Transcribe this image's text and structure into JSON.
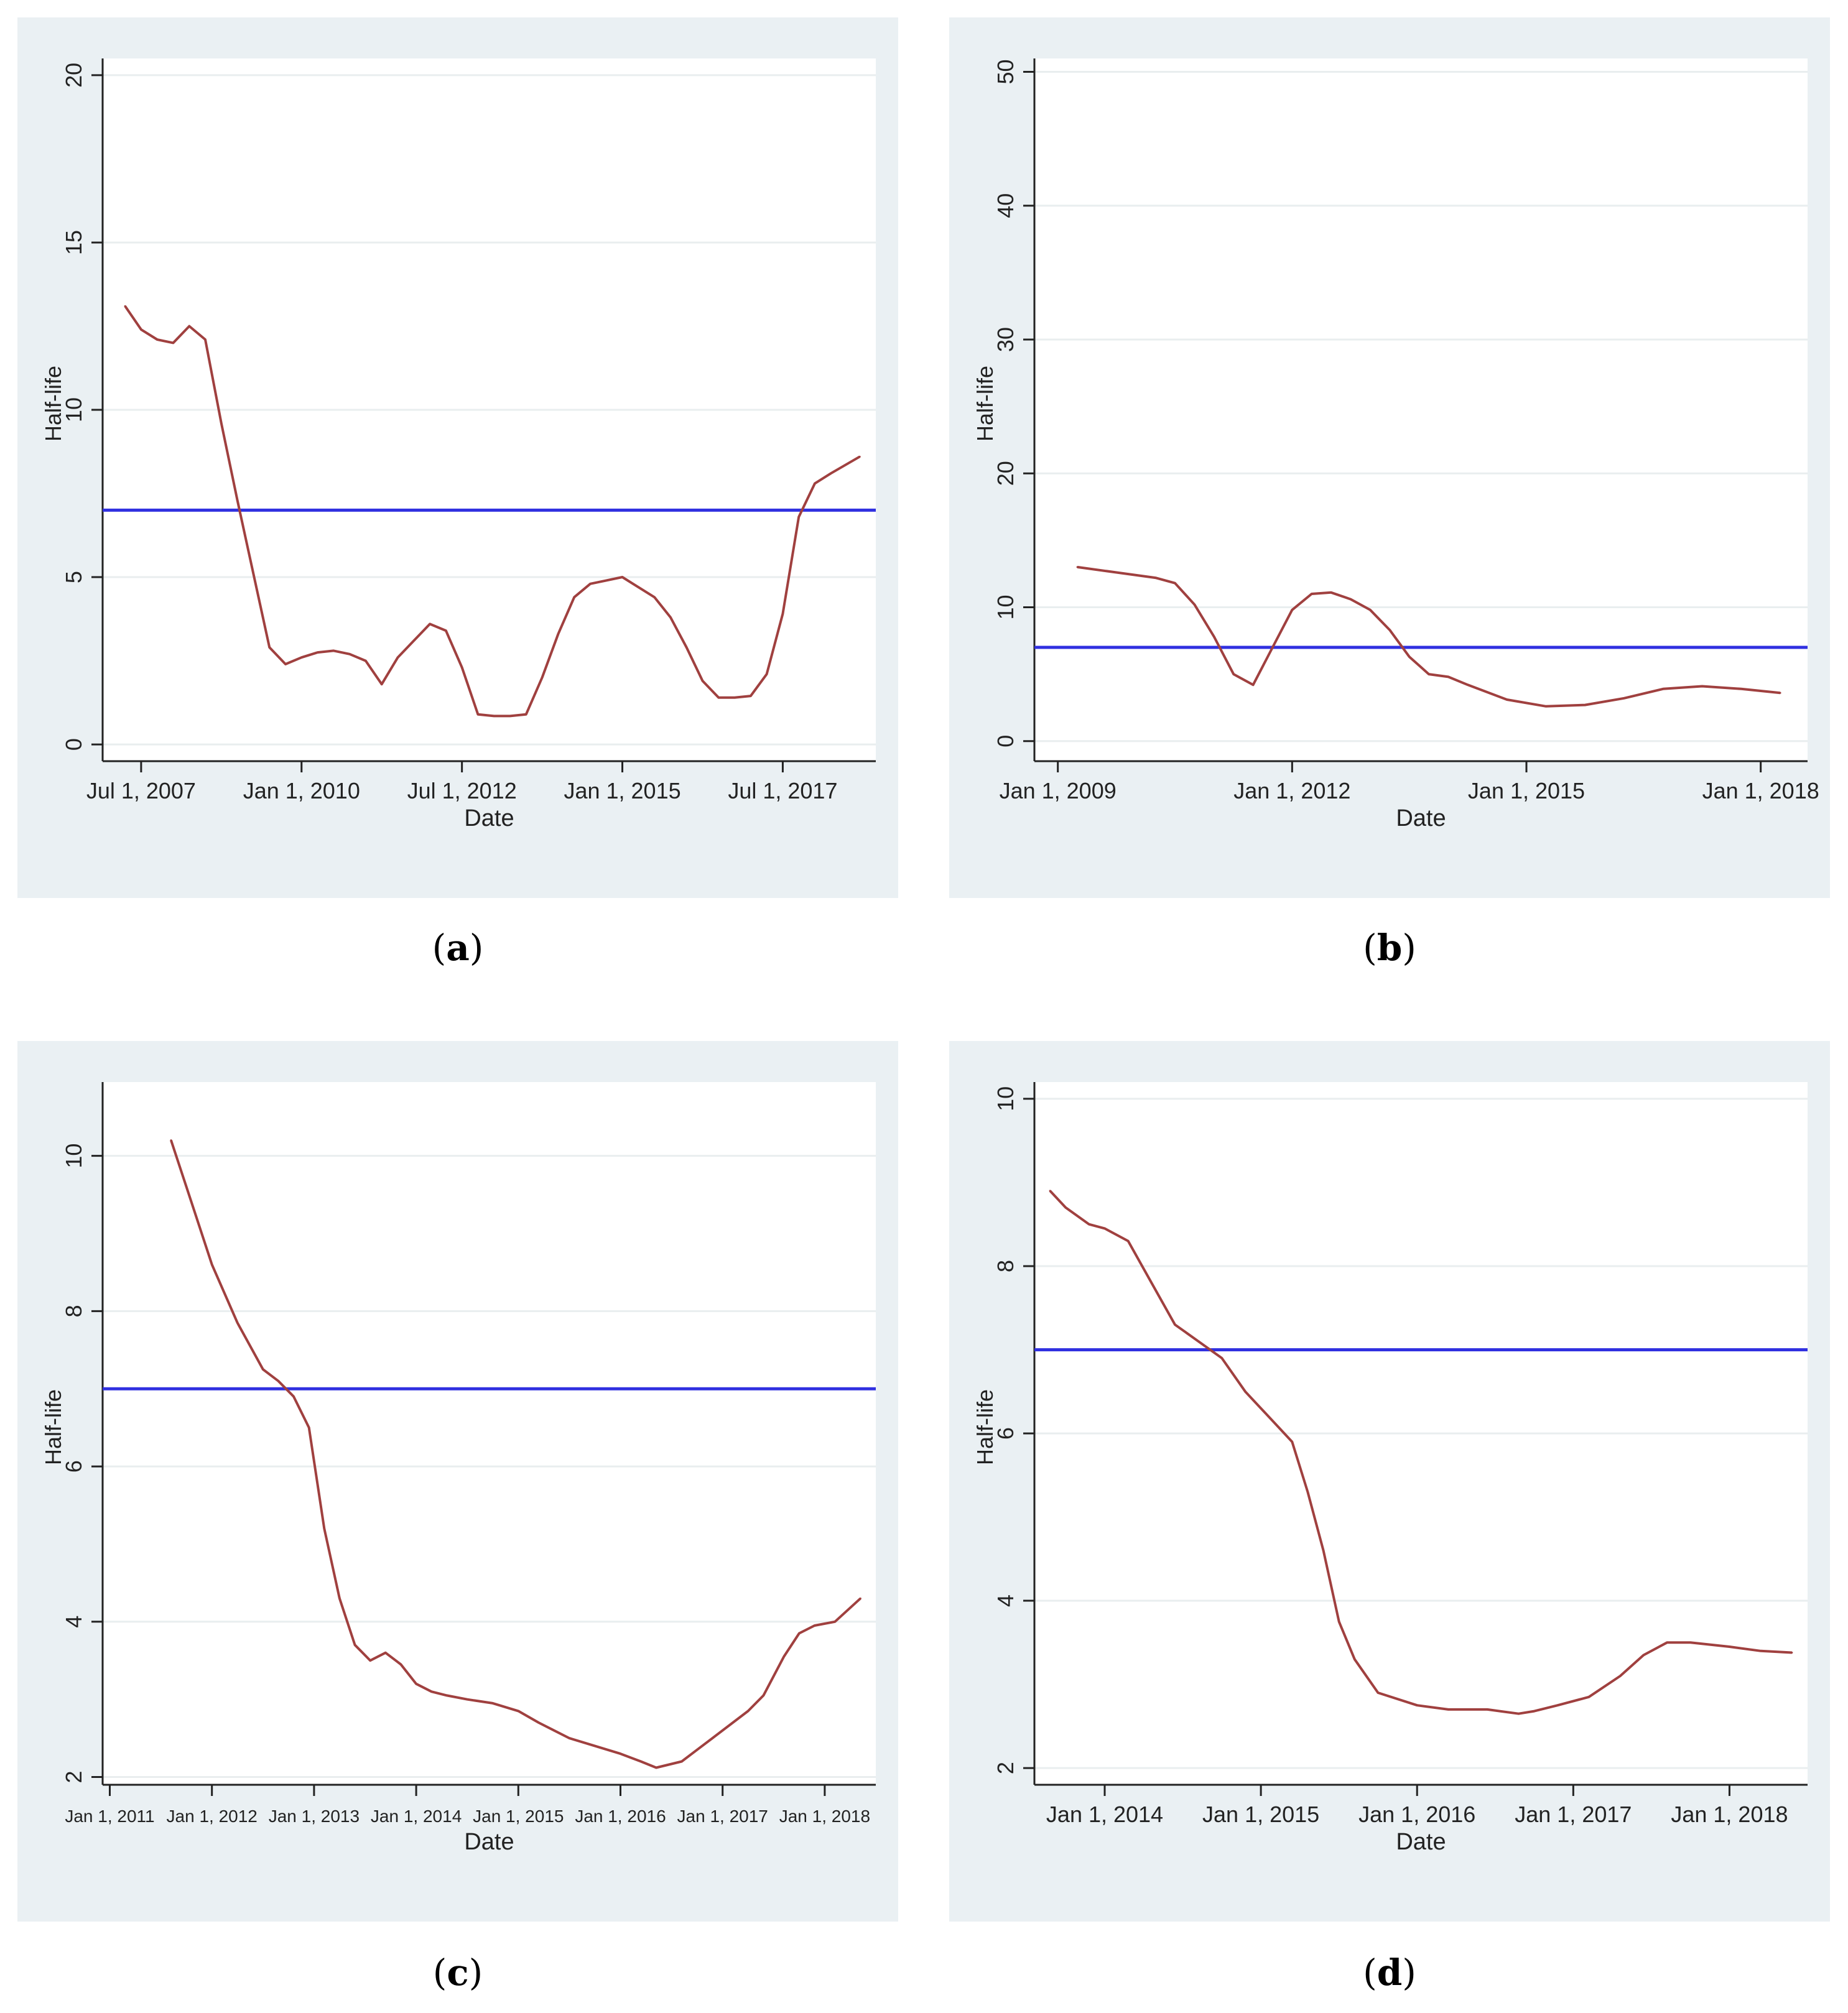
{
  "figure": {
    "captions": [
      {
        "open": "(",
        "letter": "a",
        "close": ")"
      },
      {
        "open": "(",
        "letter": "b",
        "close": ")"
      },
      {
        "open": "(",
        "letter": "c",
        "close": ")"
      },
      {
        "open": "(",
        "letter": "d",
        "close": ")"
      }
    ]
  },
  "colors": {
    "panel_bg": "#eaf0f3",
    "plot_bg": "#ffffff",
    "grid": "#e9eeef",
    "series": "#a0403f",
    "reference": "#3030e0",
    "axis": "#222222"
  },
  "chart_data": [
    {
      "type": "line",
      "id": "a",
      "title": "",
      "xlabel": "Date",
      "ylabel": "Half-life",
      "xlim": [
        2006.9,
        2018.95
      ],
      "ylim": [
        -0.5,
        20.5
      ],
      "yticks": [
        0,
        5,
        10,
        15,
        20
      ],
      "yticklabels": [
        "0",
        "5",
        "10",
        "15",
        "20"
      ],
      "xticks": [
        2007.5,
        2010.0,
        2012.5,
        2015.0,
        2017.5
      ],
      "xticklabels": [
        "Jul 1, 2007",
        "Jan 1, 2010",
        "Jul 1, 2012",
        "Jan 1, 2015",
        "Jul 1, 2017"
      ],
      "hline": 7,
      "series": [
        {
          "name": "Half-life",
          "x": [
            2007.25,
            2007.5,
            2007.75,
            2008.0,
            2008.25,
            2008.5,
            2008.75,
            2009.0,
            2009.25,
            2009.5,
            2009.75,
            2010.0,
            2010.25,
            2010.5,
            2010.75,
            2011.0,
            2011.25,
            2011.5,
            2011.75,
            2012.0,
            2012.25,
            2012.5,
            2012.75,
            2013.0,
            2013.25,
            2013.5,
            2013.75,
            2014.0,
            2014.25,
            2014.5,
            2014.75,
            2015.0,
            2015.25,
            2015.5,
            2015.75,
            2016.0,
            2016.25,
            2016.5,
            2016.75,
            2017.0,
            2017.25,
            2017.5,
            2017.75,
            2018.0,
            2018.25,
            2018.7
          ],
          "values": [
            13.1,
            12.4,
            12.1,
            12.0,
            12.5,
            12.1,
            9.6,
            7.3,
            5.1,
            2.9,
            2.4,
            2.6,
            2.75,
            2.8,
            2.7,
            2.5,
            1.8,
            2.6,
            3.1,
            3.6,
            3.4,
            2.3,
            0.9,
            0.85,
            0.85,
            0.9,
            2.0,
            3.3,
            4.4,
            4.8,
            4.9,
            5.0,
            4.7,
            4.4,
            3.8,
            2.9,
            1.9,
            1.4,
            1.4,
            1.45,
            2.1,
            3.9,
            6.8,
            7.8,
            8.1,
            8.6
          ]
        }
      ]
    },
    {
      "type": "line",
      "id": "b",
      "title": "",
      "xlabel": "Date",
      "ylabel": "Half-life",
      "xlim": [
        2008.7,
        2018.6
      ],
      "ylim": [
        -1.5,
        51
      ],
      "yticks": [
        0,
        10,
        20,
        30,
        40,
        50
      ],
      "yticklabels": [
        "0",
        "10",
        "20",
        "30",
        "40",
        "50"
      ],
      "xticks": [
        2009,
        2012,
        2015,
        2018
      ],
      "xticklabels": [
        "Jan 1, 2009",
        "Jan 1, 2012",
        "Jan 1, 2015",
        "Jan 1, 2018"
      ],
      "hline": 7,
      "series": [
        {
          "name": "Half-life",
          "x": [
            2009.25,
            2009.75,
            2010.25,
            2010.5,
            2010.75,
            2011.0,
            2011.25,
            2011.5,
            2011.75,
            2012.0,
            2012.25,
            2012.5,
            2012.75,
            2013.0,
            2013.25,
            2013.5,
            2013.75,
            2014.0,
            2014.25,
            2014.75,
            2015.25,
            2015.75,
            2016.25,
            2016.75,
            2017.25,
            2017.75,
            2018.25
          ],
          "values": [
            13.0,
            12.6,
            12.2,
            11.8,
            10.2,
            7.8,
            5.0,
            4.2,
            7.0,
            9.8,
            11.0,
            11.1,
            10.6,
            9.8,
            8.3,
            6.3,
            5.0,
            4.8,
            4.2,
            3.1,
            2.6,
            2.7,
            3.2,
            3.9,
            4.1,
            3.9,
            3.6
          ]
        }
      ]
    },
    {
      "type": "line",
      "id": "c",
      "title": "",
      "xlabel": "Date",
      "ylabel": "Half-life",
      "xlim": [
        2010.93,
        2018.5
      ],
      "ylim": [
        1.9,
        10.95
      ],
      "yticks": [
        2,
        4,
        6,
        8,
        10
      ],
      "yticklabels": [
        "2",
        "4",
        "6",
        "8",
        "10"
      ],
      "xticks": [
        2011,
        2012,
        2013,
        2014,
        2015,
        2016,
        2017,
        2018
      ],
      "xticklabels": [
        "Jan 1, 2011",
        "Jan 1, 2012",
        "Jan 1, 2013",
        "Jan 1, 2014",
        "Jan 1, 2015",
        "Jan 1, 2016",
        "Jan 1, 2017",
        "Jan 1, 2018"
      ],
      "hline": 7,
      "series": [
        {
          "name": "Half-life",
          "x": [
            2011.6,
            2011.8,
            2012.0,
            2012.25,
            2012.5,
            2012.65,
            2012.8,
            2012.95,
            2013.1,
            2013.25,
            2013.4,
            2013.55,
            2013.7,
            2013.85,
            2014.0,
            2014.15,
            2014.3,
            2014.5,
            2014.75,
            2015.0,
            2015.2,
            2015.5,
            2015.75,
            2016.0,
            2016.2,
            2016.35,
            2016.6,
            2016.75,
            2016.9,
            2017.1,
            2017.25,
            2017.4,
            2017.6,
            2017.75,
            2017.9,
            2018.1,
            2018.35
          ],
          "values": [
            10.2,
            9.4,
            8.6,
            7.85,
            7.25,
            7.1,
            6.9,
            6.5,
            5.2,
            4.3,
            3.7,
            3.5,
            3.6,
            3.45,
            3.2,
            3.1,
            3.05,
            3.0,
            2.95,
            2.85,
            2.7,
            2.5,
            2.4,
            2.3,
            2.2,
            2.12,
            2.2,
            2.35,
            2.5,
            2.7,
            2.85,
            3.05,
            3.55,
            3.85,
            3.95,
            4.0,
            4.3
          ]
        }
      ]
    },
    {
      "type": "line",
      "id": "d",
      "title": "",
      "xlabel": "Date",
      "ylabel": "Half-life",
      "xlim": [
        2013.55,
        2018.5
      ],
      "ylim": [
        1.8,
        10.2
      ],
      "yticks": [
        2,
        4,
        6,
        8,
        10
      ],
      "yticklabels": [
        "2",
        "4",
        "6",
        "8",
        "10"
      ],
      "xticks": [
        2014,
        2015,
        2016,
        2017,
        2018
      ],
      "xticklabels": [
        "Jan 1, 2014",
        "Jan 1, 2015",
        "Jan 1, 2016",
        "Jan 1, 2017",
        "Jan 1, 2018"
      ],
      "hline": 7,
      "series": [
        {
          "name": "Half-life",
          "x": [
            2013.65,
            2013.75,
            2013.9,
            2014.0,
            2014.15,
            2014.3,
            2014.45,
            2014.6,
            2014.75,
            2014.9,
            2015.0,
            2015.1,
            2015.2,
            2015.3,
            2015.4,
            2015.5,
            2015.6,
            2015.75,
            2016.0,
            2016.2,
            2016.45,
            2016.65,
            2016.75,
            2016.9,
            2017.1,
            2017.3,
            2017.45,
            2017.6,
            2017.75,
            2018.0,
            2018.2,
            2018.4
          ],
          "values": [
            8.9,
            8.7,
            8.5,
            8.45,
            8.3,
            7.8,
            7.3,
            7.1,
            6.9,
            6.5,
            6.3,
            6.1,
            5.9,
            5.3,
            4.6,
            3.75,
            3.3,
            2.9,
            2.75,
            2.7,
            2.7,
            2.65,
            2.68,
            2.75,
            2.85,
            3.1,
            3.35,
            3.5,
            3.5,
            3.45,
            3.4,
            3.38
          ]
        }
      ]
    }
  ]
}
